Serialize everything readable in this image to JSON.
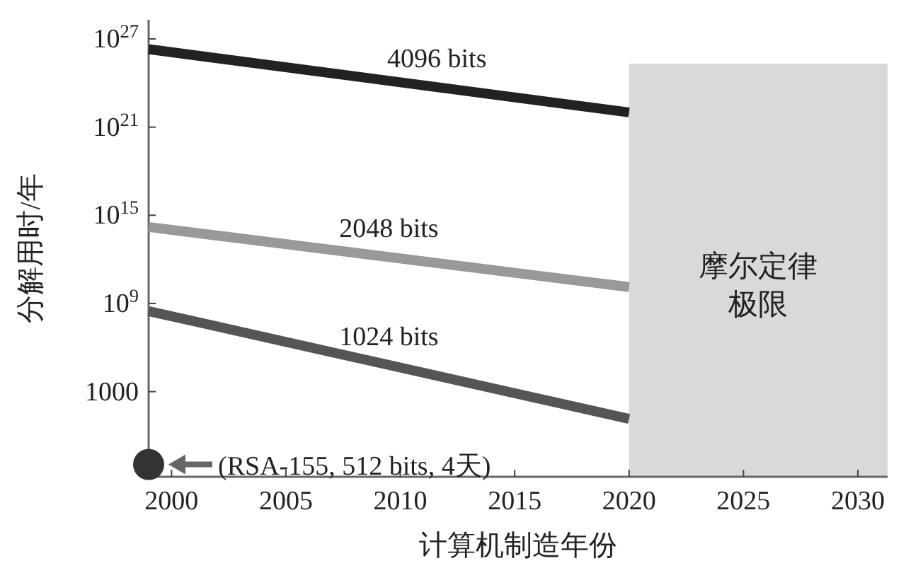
{
  "chart_data": {
    "type": "line",
    "xlabel": "计算机制造年份",
    "ylabel": "分解用时/年",
    "log": "y",
    "xlim": [
      1999,
      2031.3
    ],
    "xticks": [
      2000,
      2005,
      2010,
      2015,
      2020,
      2025,
      2030
    ],
    "ylim": [
      0.0016,
      2e+28
    ],
    "yticks": [
      {
        "value": 1000,
        "label": "1000"
      },
      {
        "value": 1000000000.0,
        "label": "10$^{9}$"
      },
      {
        "value": 1000000000000000.0,
        "label": "10$^{15}$"
      },
      {
        "value": 1e+21,
        "label": "10$^{21}$"
      },
      {
        "value": 1e+27,
        "label": "10$^{27}$"
      }
    ],
    "grid": false,
    "x": [
      1999,
      2020
    ],
    "series": [
      {
        "name": "4096 bits",
        "color": "#222222",
        "values": [
          2e+26,
          1e+22
        ]
      },
      {
        "name": "2048 bits",
        "color": "#999999",
        "values": [
          160000000000000.0,
          13000000000.0
        ]
      },
      {
        "name": "1024 bits",
        "color": "#555555",
        "values": [
          300000000.0,
          14
        ]
      },
      {
        "type": "scatter",
        "color": "#333333",
        "x": [
          1999
        ],
        "values": [
          0.011
        ],
        "marker": "circle"
      }
    ],
    "bands": [
      {
        "axis": "x",
        "from": 2020,
        "to": 2031.3,
        "label": "摩尔定律极限",
        "color": "#d9d9d9"
      }
    ],
    "annotations": [
      {
        "text": "(RSA-155, 512 bits, 4天)",
        "x": 1999,
        "y": 0.011
      }
    ]
  }
}
